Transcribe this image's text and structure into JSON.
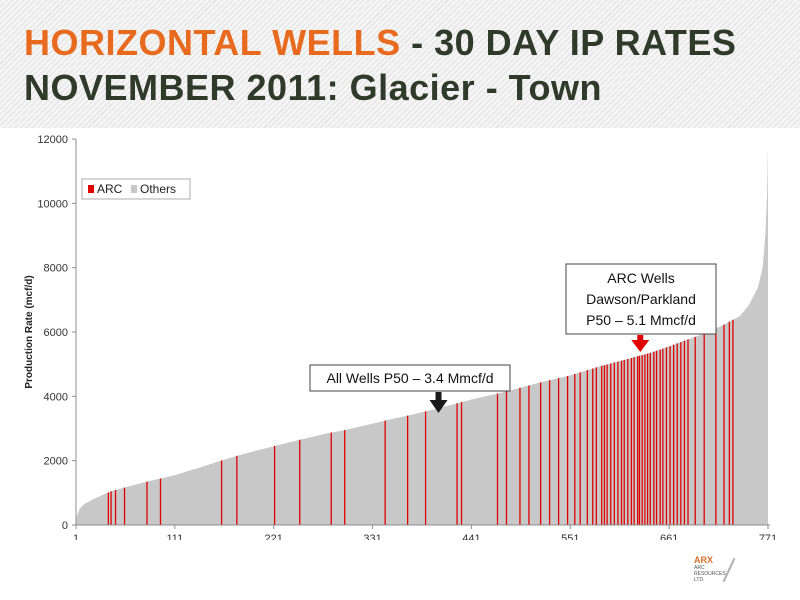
{
  "header": {
    "title_part1": "HORIZONTAL WELLS",
    "title_part2": " - 30 DAY IP RATES",
    "title_line2": "NOVEMBER 2011: Glacier - Town",
    "title_color_accent": "#e86a1f",
    "title_color_dark": "#2f3a2a"
  },
  "logo": {
    "name": "ARX",
    "sub": [
      "ARC",
      "RESOURCES",
      "LTD."
    ]
  },
  "chart_data": {
    "type": "bar",
    "ylabel": "Production Rate (mcf/d)",
    "xlabel": "",
    "xlim": [
      1,
      771
    ],
    "ylim": [
      0,
      12000
    ],
    "yticks": [
      0,
      2000,
      4000,
      6000,
      8000,
      10000,
      12000
    ],
    "xticks": [
      1,
      111,
      221,
      331,
      441,
      551,
      661,
      771
    ],
    "grid": false,
    "legend": {
      "position": "top-left",
      "entries": [
        "ARC",
        "Others"
      ]
    },
    "series": [
      {
        "name": "ARC",
        "color": "#e00000"
      },
      {
        "name": "Others",
        "color": "#c8c8c8"
      }
    ],
    "curve_x": [
      1,
      5,
      10,
      20,
      40,
      60,
      80,
      111,
      140,
      160,
      180,
      200,
      221,
      250,
      280,
      300,
      331,
      350,
      370,
      400,
      441,
      480,
      500,
      520,
      551,
      580,
      600,
      620,
      640,
      661,
      680,
      700,
      720,
      740,
      750,
      760,
      765,
      768,
      770,
      771
    ],
    "curve_y": [
      200,
      500,
      650,
      800,
      1050,
      1200,
      1350,
      1550,
      1800,
      1980,
      2150,
      2300,
      2450,
      2650,
      2850,
      2950,
      3150,
      3280,
      3400,
      3600,
      3900,
      4150,
      4300,
      4450,
      4650,
      4900,
      5050,
      5200,
      5350,
      5550,
      5750,
      5950,
      6200,
      6500,
      6850,
      7400,
      8000,
      9000,
      10300,
      11800
    ],
    "arc_wells_x": [
      37,
      40,
      45,
      55,
      80,
      95,
      163,
      180,
      222,
      250,
      285,
      300,
      345,
      370,
      390,
      425,
      430,
      470,
      480,
      495,
      505,
      518,
      528,
      538,
      548,
      556,
      562,
      570,
      576,
      580,
      586,
      589,
      592,
      596,
      600,
      604,
      608,
      611,
      615,
      619,
      622,
      626,
      628,
      631,
      634,
      637,
      640,
      644,
      647,
      651,
      654,
      658,
      662,
      666,
      670,
      674,
      678,
      682,
      690,
      700,
      713,
      722,
      728,
      732
    ],
    "annotations": [
      {
        "text": "All Wells P50 – 3.4 Mmcf/d",
        "x": 371,
        "y": 3400,
        "arrow_color": "#1a1a1a"
      },
      {
        "text": "ARC Wells\nDawson/Parkland\nP50 – 5.1 Mmcf/d",
        "x": 630,
        "y": 5250,
        "arrow_color": "#e00000"
      }
    ]
  }
}
